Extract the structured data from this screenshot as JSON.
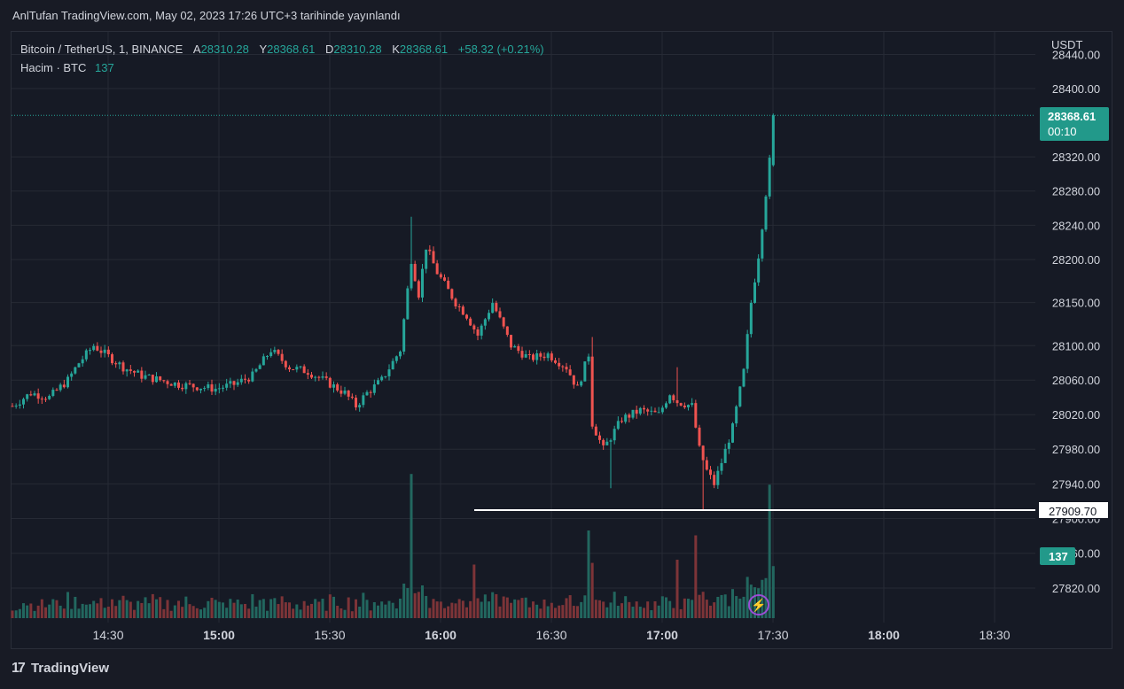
{
  "header": {
    "publisher_text": "AnlTufan TradingView.com, May 02, 2023 17:26 UTC+3 tarihinde yayınlandı"
  },
  "legend": {
    "symbol": "Bitcoin / TetherUS, 1, BINANCE",
    "open_label": "A",
    "open_value": "28310.28",
    "high_label": "Y",
    "high_value": "28368.61",
    "low_label": "D",
    "low_value": "28310.28",
    "close_label": "K",
    "close_value": "28368.61",
    "change": "+58.32 (+0.21%)",
    "volume_label": "Hacim · BTC",
    "volume_value": "137"
  },
  "price_axis": {
    "unit": "USDT"
  },
  "tags": {
    "last_price": "28368.61",
    "countdown": "00:10",
    "horizontal_line_price": "27909.70",
    "volume": "137"
  },
  "footer": {
    "brand": "TradingView",
    "logo_glyph": "17"
  },
  "colors": {
    "up": "#26a69a",
    "down": "#ef5350",
    "up_volume": "#22675f",
    "down_volume": "#7d3438",
    "background": "#161a25",
    "grid": "#262a35"
  },
  "chart_data": {
    "type": "candlestick",
    "x_axis_ticks": [
      "14:30",
      "15:00",
      "15:30",
      "16:00",
      "16:30",
      "17:00",
      "17:30",
      "18:00",
      "18:30"
    ],
    "x_axis_bold_ticks": [
      "15:00",
      "16:00",
      "17:00",
      "18:00"
    ],
    "y_axis_ticks": [
      "28440.00",
      "28400.00",
      "28320.00",
      "28280.00",
      "28240.00",
      "28200.00",
      "28150.00",
      "28100.00",
      "28060.00",
      "28020.00",
      "27980.00",
      "27940.00",
      "27900.00",
      "27860.00",
      "27820.00"
    ],
    "ylim": [
      27800,
      28440
    ],
    "log_scale": true,
    "horizontal_line": 27909.7,
    "last_price": 28368.61,
    "grid": true,
    "time_range": [
      "14:00",
      "17:26"
    ],
    "close_path": [
      [
        "14:00",
        28030
      ],
      [
        "14:05",
        28045
      ],
      [
        "14:10",
        28040
      ],
      [
        "14:15",
        28060
      ],
      [
        "14:18",
        28080
      ],
      [
        "14:22",
        28100
      ],
      [
        "14:30",
        28075
      ],
      [
        "14:35",
        28065
      ],
      [
        "14:45",
        28055
      ],
      [
        "14:55",
        28050
      ],
      [
        "15:00",
        28055
      ],
      [
        "15:05",
        28065
      ],
      [
        "15:10",
        28095
      ],
      [
        "15:15",
        28075
      ],
      [
        "15:20",
        28070
      ],
      [
        "15:25",
        28058
      ],
      [
        "15:30",
        28045
      ],
      [
        "15:33",
        28030
      ],
      [
        "15:36",
        28045
      ],
      [
        "15:40",
        28060
      ],
      [
        "15:45",
        28095
      ],
      [
        "15:48",
        28200
      ],
      [
        "15:50",
        28160
      ],
      [
        "15:52",
        28215
      ],
      [
        "15:55",
        28185
      ],
      [
        "16:00",
        28150
      ],
      [
        "16:03",
        28135
      ],
      [
        "16:06",
        28112
      ],
      [
        "16:10",
        28150
      ],
      [
        "16:15",
        28100
      ],
      [
        "16:20",
        28085
      ],
      [
        "16:25",
        28090
      ],
      [
        "16:30",
        28075
      ],
      [
        "16:33",
        28050
      ],
      [
        "16:36",
        28090
      ],
      [
        "16:37",
        28010
      ],
      [
        "16:40",
        27980
      ],
      [
        "16:45",
        28015
      ],
      [
        "16:50",
        28025
      ],
      [
        "16:55",
        28020
      ],
      [
        "16:58",
        28045
      ],
      [
        "17:00",
        28035
      ],
      [
        "17:04",
        28030
      ],
      [
        "17:06",
        27980
      ],
      [
        "17:08",
        27955
      ],
      [
        "17:10",
        27940
      ],
      [
        "17:12",
        27965
      ],
      [
        "17:15",
        28005
      ],
      [
        "17:18",
        28070
      ],
      [
        "17:20",
        28150
      ],
      [
        "17:22",
        28205
      ],
      [
        "17:23",
        28240
      ],
      [
        "17:25",
        28315
      ],
      [
        "17:26",
        28368.61
      ]
    ],
    "volume_spikes": [
      [
        "15:48",
        148
      ],
      [
        "16:05",
        55
      ],
      [
        "16:36",
        90
      ],
      [
        "17:00",
        60
      ],
      [
        "17:05",
        85
      ],
      [
        "17:25",
        137
      ]
    ]
  }
}
